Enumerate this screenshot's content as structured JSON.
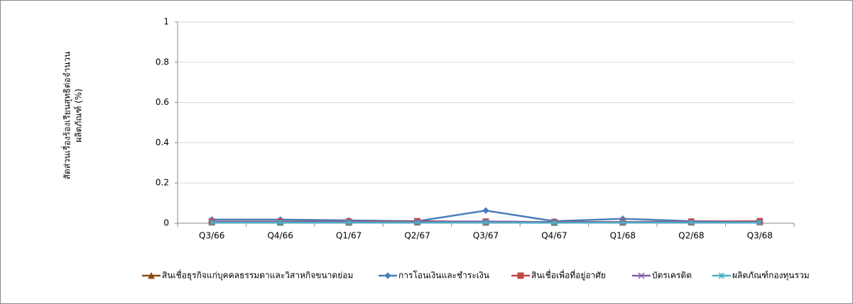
{
  "chart_data": {
    "type": "line",
    "ylabel": [
      "สัดส่วนเรื่องร้องเรียนสุทธิต่อจำนวน",
      "ผลิตภัณฑ์ (%)"
    ],
    "categories": [
      "Q3/66",
      "Q4/66",
      "Q1/67",
      "Q2/67",
      "Q3/67",
      "Q4/67",
      "Q1/68",
      "Q2/68",
      "Q3/68"
    ],
    "ylim": [
      0,
      1
    ],
    "yticks": [
      0,
      0.2,
      0.4,
      0.6,
      0.8,
      1
    ],
    "grid": true,
    "legend": "bottom",
    "series": [
      {
        "name": "สินเชื่อธุรกิจแก่บุคคลธรรมดาและวิสาหกิจขนาดย่อม",
        "color": "#8a4a12",
        "marker": "triangle",
        "values": [
          0.005,
          0.004,
          0.004,
          0.005,
          0.004,
          0.003,
          0.004,
          0.005,
          0.006
        ]
      },
      {
        "name": "การโอนเงินและชำระเงิน",
        "color": "#4a7ebb",
        "marker": "diamond",
        "values": [
          0.018,
          0.018,
          0.014,
          0.01,
          0.063,
          0.01,
          0.022,
          0.01,
          0.008
        ]
      },
      {
        "name": "สินเชื่อเพื่อที่อยู่อาศัย",
        "color": "#be4b48",
        "marker": "square",
        "values": [
          0.008,
          0.008,
          0.008,
          0.01,
          0.008,
          0.006,
          0.006,
          0.008,
          0.01
        ]
      },
      {
        "name": "บัตรเครดิต",
        "color": "#7d60a0",
        "marker": "x",
        "values": [
          0.006,
          0.006,
          0.006,
          0.007,
          0.009,
          0.005,
          0.005,
          0.006,
          0.006
        ]
      },
      {
        "name": "ผลิตภัณฑ์กองทุนรวม",
        "color": "#4bacc6",
        "marker": "star",
        "values": [
          0.003,
          0.003,
          0.003,
          0.003,
          0.003,
          0.002,
          0.003,
          0.003,
          0.003
        ]
      }
    ]
  }
}
